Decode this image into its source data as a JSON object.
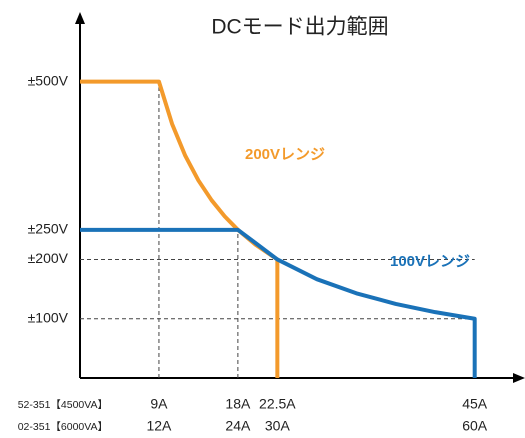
{
  "chart_data": {
    "type": "line",
    "title": "DCモード出力範囲",
    "series": [
      {
        "name": "200Vレンジ",
        "color": "#f39a2b",
        "x": [
          0,
          9,
          10.5,
          12,
          13.5,
          15,
          16.5,
          18,
          20,
          22.5,
          22.5
        ],
        "values": [
          500,
          500,
          428.6,
          375,
          333.3,
          300,
          272.7,
          250,
          225,
          200,
          0
        ]
      },
      {
        "name": "100Vレンジ",
        "color": "#1a72b8",
        "x": [
          0,
          18,
          22.5,
          27,
          31.5,
          36,
          40.5,
          45,
          45
        ],
        "values": [
          250,
          250,
          200,
          166.7,
          142.9,
          125,
          111.1,
          100,
          0
        ]
      }
    ],
    "xlim": [
      0,
      48
    ],
    "xticks": [
      {
        "value": 9,
        "label": "9A"
      },
      {
        "value": 18,
        "label": "18A"
      },
      {
        "value": 22.5,
        "label": "22.5A"
      },
      {
        "value": 45,
        "label": "45A"
      }
    ],
    "x2lim": [
      0,
      64
    ],
    "x2ticks": [
      {
        "value": 12,
        "label": "12A"
      },
      {
        "value": 24,
        "label": "24A"
      },
      {
        "value": 30,
        "label": "30A"
      },
      {
        "value": 60,
        "label": "60A"
      }
    ],
    "xtick_row_labels": [
      "52-351【4500VA】",
      "02-351【6000VA】"
    ],
    "ylim": [
      0,
      550
    ],
    "yticks": [
      {
        "value": 100,
        "label": "±100V"
      },
      {
        "value": 200,
        "label": "±200V"
      },
      {
        "value": 250,
        "label": "±250V"
      },
      {
        "value": 500,
        "label": "±500V"
      }
    ]
  }
}
